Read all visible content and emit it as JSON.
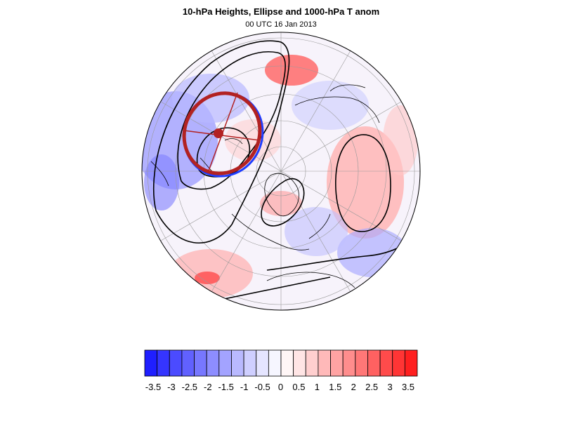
{
  "title": "10-hPa Heights, Ellipse and 1000-hPa T anom",
  "subtitle": "00 UTC 16 Jan 2013",
  "colorbar": {
    "colors": [
      "#1f1fff",
      "#3535ff",
      "#4b4bff",
      "#6161ff",
      "#7777ff",
      "#8d8dff",
      "#a3a3ff",
      "#b9b9ff",
      "#cfcfff",
      "#e5e5ff",
      "#f6f6ff",
      "#fff6f6",
      "#ffe5e5",
      "#ffcfcf",
      "#ffb9b9",
      "#ffa3a3",
      "#ff8d8d",
      "#ff7777",
      "#ff6161",
      "#ff4b4b",
      "#ff3535",
      "#ff1f1f"
    ],
    "tick_labels": [
      "-3.5",
      "-3",
      "-2.5",
      "-2",
      "-1.5",
      "-1",
      "-0.5",
      "0",
      "0.5",
      "1",
      "1.5",
      "2",
      "2.5",
      "3",
      "3.5"
    ]
  },
  "colors": {
    "ellipse": "#b22222",
    "ellipse_edge": "#1e3cff",
    "contour": "#000000"
  }
}
